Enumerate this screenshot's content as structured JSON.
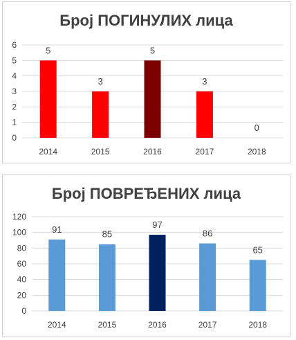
{
  "chart_data": [
    {
      "type": "bar",
      "title": "Број ПОГИНУЛИХ лица",
      "categories": [
        "2014",
        "2015",
        "2016",
        "2017",
        "2018"
      ],
      "values": [
        5,
        3,
        5,
        3,
        0
      ],
      "data_labels": [
        "5",
        "3",
        "5",
        "3",
        "0"
      ],
      "ylim": [
        0,
        6
      ],
      "yticks": [
        0,
        1,
        2,
        3,
        4,
        5,
        6
      ],
      "grid": true,
      "legend": "none",
      "bar_colors": [
        "#ff0000",
        "#ff0000",
        "#7b0000",
        "#ff0000",
        "#ff0000"
      ]
    },
    {
      "type": "bar",
      "title": "Број ПОВРЕЂЕНИХ лица",
      "categories": [
        "2014",
        "2015",
        "2016",
        "2017",
        "2018"
      ],
      "values": [
        91,
        85,
        97,
        86,
        65
      ],
      "data_labels": [
        "91",
        "85",
        "97",
        "86",
        "65"
      ],
      "ylim": [
        0,
        120
      ],
      "yticks": [
        0,
        20,
        40,
        60,
        80,
        100,
        120
      ],
      "grid": true,
      "legend": "none",
      "bar_colors": [
        "#5b9bd5",
        "#5b9bd5",
        "#002060",
        "#5b9bd5",
        "#5b9bd5"
      ]
    }
  ],
  "colors": {
    "gridline": "#d9d9d9",
    "text": "#404040",
    "border": "#d0d0d0"
  }
}
